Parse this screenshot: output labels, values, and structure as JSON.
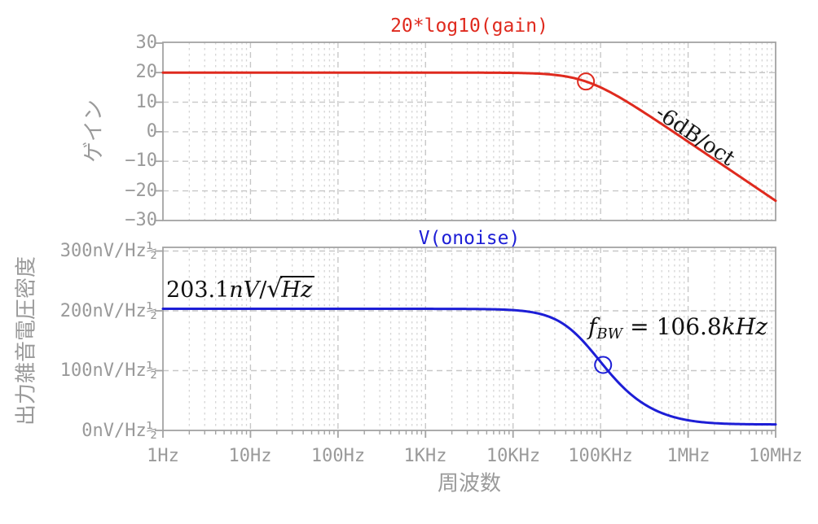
{
  "colors": {
    "background": "#ffffff",
    "axis": "#a3a3a3",
    "grid_major": "#c7c7c7",
    "grid_minor": "#d5d5d5",
    "tick_label": "#9a9a9a",
    "gain_trace": "#df2a1e",
    "noise_trace": "#1d1ed6",
    "annotation_text": "#111111"
  },
  "xaxis": {
    "label": "周波数",
    "ticks": [
      "1Hz",
      "10Hz",
      "100Hz",
      "1KHz",
      "10KHz",
      "100KHz",
      "1MHz",
      "10MHz"
    ]
  },
  "top_plot": {
    "title": "20*log10(gain)",
    "ylabel": "ゲイン",
    "yticks": [
      "30",
      "20",
      "10",
      "0",
      "−10",
      "−20",
      "−30"
    ],
    "slope_label": "-6dB/oct"
  },
  "bottom_plot": {
    "title": "V(onoise)",
    "ylabel": "出力雑音電圧密度",
    "yticks": [
      "300nV/Hz½",
      "200nV/Hz½",
      "100nV/Hz½",
      "0nV/Hz½"
    ],
    "level_annotation": {
      "value": "203.1",
      "unit": "nV",
      "slash": "/",
      "sqrt_sym": "√",
      "radicand": "Hz"
    },
    "bw_annotation": {
      "var": "f",
      "sub": "BW",
      "eq": "=",
      "value": "106.8",
      "unit": "kHz"
    }
  },
  "chart_data": [
    {
      "type": "line",
      "title": "20*log10(gain)",
      "x_axis": {
        "label": "周波数",
        "scale": "log",
        "min_hz": 1,
        "max_hz": 10000000,
        "tick_labels": [
          "1Hz",
          "10Hz",
          "100Hz",
          "1KHz",
          "10KHz",
          "100KHz",
          "1MHz",
          "10MHz"
        ]
      },
      "y_axis": {
        "label": "ゲイン",
        "unit": "dB",
        "min": -30,
        "max": 30,
        "tick_step": 10,
        "tick_labels": [
          "30",
          "20",
          "10",
          "0",
          "−10",
          "−20",
          "−30"
        ]
      },
      "grid": true,
      "series": [
        {
          "name": "20*log10(gain)",
          "color": "#df2a1e",
          "model": "first-order low-pass",
          "flat_db": 20,
          "corner_hz": 68000,
          "slope": "-6dB/oct",
          "x_hz": [
            1,
            10,
            100,
            1000,
            10000,
            100000,
            1000000,
            10000000
          ],
          "y_db": [
            20,
            20,
            20,
            20,
            19.9,
            15.0,
            -3.4,
            -23.3
          ]
        }
      ],
      "marker": {
        "f_hz": 68000,
        "y_db": 17,
        "shape": "open-circle"
      },
      "annotations": [
        {
          "text": "-6dB/oct",
          "rotated_along_slope": true
        }
      ]
    },
    {
      "type": "line",
      "title": "V(onoise)",
      "x_axis": {
        "label": "周波数",
        "scale": "log",
        "min_hz": 1,
        "max_hz": 10000000,
        "tick_labels": [
          "1Hz",
          "10Hz",
          "100Hz",
          "1KHz",
          "10KHz",
          "100KHz",
          "1MHz",
          "10MHz"
        ]
      },
      "y_axis": {
        "label": "出力雑音電圧密度",
        "unit": "nV/Hz½",
        "min": 0,
        "max": 300,
        "tick_step": 100,
        "tick_labels": [
          "300nV/Hz½",
          "200nV/Hz½",
          "100nV/Hz½",
          "0nV/Hz½"
        ]
      },
      "grid": true,
      "series": [
        {
          "name": "V(onoise)",
          "color": "#1d1ed6",
          "model": "first-order low-pass",
          "flat_nv": 203.1,
          "corner_hz": 68000,
          "floor_nv": 10,
          "x_hz": [
            1,
            10,
            100,
            1000,
            10000,
            100000,
            1000000,
            10000000
          ],
          "y_nv": [
            203.1,
            203.1,
            203.1,
            203.1,
            200.9,
            114.2,
            17.0,
            10.1
          ]
        }
      ],
      "marker": {
        "f_hz": 106800,
        "shape": "open-circle"
      },
      "annotations": [
        {
          "text": "203.1nV/√Hz"
        },
        {
          "text": "f_BW = 106.8kHz",
          "f_bw_khz": 106.8
        }
      ]
    }
  ]
}
